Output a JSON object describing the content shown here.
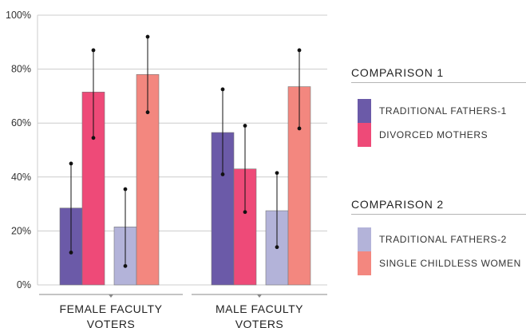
{
  "colors": {
    "traditional_fathers_1": "#6b5aa8",
    "divorced_mothers": "#ee4a78",
    "traditional_fathers_2": "#b3b3d9",
    "single_childless_women": "#f3877f",
    "grid": "#cccccc",
    "axis": "#888888"
  },
  "chart_data": {
    "type": "bar",
    "categories": [
      "FEMALE FACULTY VOTERS",
      "MALE FACULTY VOTERS"
    ],
    "category_lines": [
      [
        "FEMALE FACULTY",
        "VOTERS"
      ],
      [
        "MALE FACULTY",
        "VOTERS"
      ]
    ],
    "yticks": [
      "0%",
      "20%",
      "40%",
      "60%",
      "80%",
      "100%"
    ],
    "ylim": [
      0,
      100
    ],
    "grid": true,
    "series": [
      {
        "name": "TRADITIONAL FATHERS-1",
        "color_key": "traditional_fathers_1",
        "values": [
          28.5,
          56.5
        ],
        "err_low": [
          12,
          41
        ],
        "err_high": [
          45,
          72.5
        ]
      },
      {
        "name": "DIVORCED MOTHERS",
        "color_key": "divorced_mothers",
        "values": [
          71.5,
          43
        ],
        "err_low": [
          54.5,
          27
        ],
        "err_high": [
          87,
          59
        ]
      },
      {
        "name": "TRADITIONAL FATHERS-2",
        "color_key": "traditional_fathers_2",
        "values": [
          21.5,
          27.5
        ],
        "err_low": [
          7,
          14
        ],
        "err_high": [
          35.5,
          41.5
        ]
      },
      {
        "name": "SINGLE CHILDLESS WOMEN",
        "color_key": "single_childless_women",
        "values": [
          78,
          73.5
        ],
        "err_low": [
          64,
          58
        ],
        "err_high": [
          92,
          87
        ]
      }
    ]
  },
  "legend": {
    "comparison1": {
      "heading": "COMPARISON 1",
      "items": [
        {
          "label": "TRADITIONAL FATHERS-1",
          "color_key": "traditional_fathers_1"
        },
        {
          "label": "DIVORCED MOTHERS",
          "color_key": "divorced_mothers"
        }
      ]
    },
    "comparison2": {
      "heading": "COMPARISON 2",
      "items": [
        {
          "label": "TRADITIONAL FATHERS-2",
          "color_key": "traditional_fathers_2"
        },
        {
          "label": "SINGLE CHILDLESS WOMEN",
          "color_key": "single_childless_women"
        }
      ]
    }
  }
}
